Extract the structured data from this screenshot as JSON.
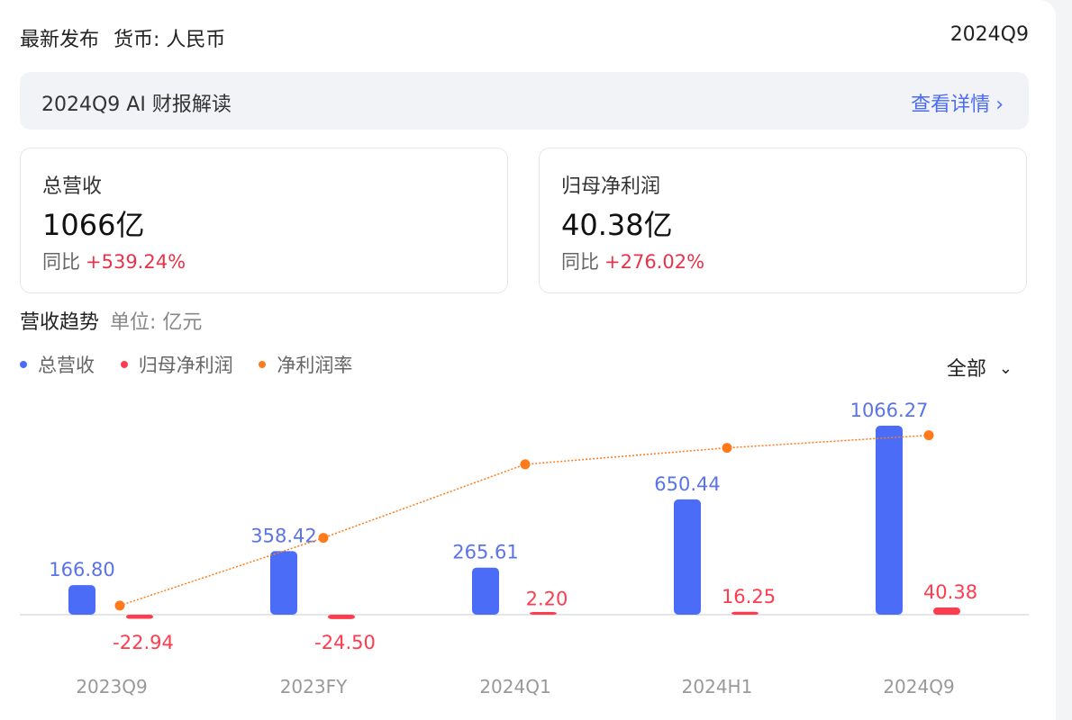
{
  "header": {
    "latest": "最新发布",
    "currency": "货币: 人民币",
    "period": "2024Q9"
  },
  "ai_bar": {
    "title": "2024Q9 AI 财报解读",
    "link": "查看详情",
    "chevron": "›"
  },
  "kpis": [
    {
      "label": "总营收",
      "value": "1066亿",
      "yoy_label": "同比",
      "yoy_value": "+539.24%"
    },
    {
      "label": "归母净利润",
      "value": "40.38亿",
      "yoy_label": "同比",
      "yoy_value": "+276.02%"
    }
  ],
  "trend": {
    "title": "营收趋势",
    "unit": "单位: 亿元"
  },
  "legend": [
    {
      "name": "总营收",
      "color": "#4a6cf7"
    },
    {
      "name": "归母净利润",
      "color": "#ff3b4e"
    },
    {
      "name": "净利润率",
      "color": "#ff7a1a"
    }
  ],
  "filter": {
    "label": "全部",
    "chevron": "⌄"
  },
  "colors": {
    "revenue": "#4a6cf7",
    "profit": "#ff3b4e",
    "margin": "#ff7a1a"
  },
  "chart_data": {
    "type": "bar",
    "categories": [
      "2023Q9",
      "2023FY",
      "2024Q1",
      "2024H1",
      "2024Q9"
    ],
    "series": [
      {
        "name": "总营收",
        "kind": "bar",
        "values": [
          166.8,
          358.42,
          265.61,
          650.44,
          1066.27
        ],
        "labels": [
          "166.80",
          "358.42",
          "265.61",
          "650.44",
          "1066.27"
        ]
      },
      {
        "name": "归母净利润",
        "kind": "bar",
        "values": [
          -22.94,
          -24.5,
          2.2,
          16.25,
          40.38
        ],
        "labels": [
          "-22.94",
          "-24.50",
          "2.20",
          "16.25",
          "40.38"
        ]
      },
      {
        "name": "净利润率",
        "kind": "line",
        "values": [
          -13.8,
          -6.8,
          0.8,
          2.5,
          3.8
        ]
      }
    ],
    "ylim": [
      -60,
      1100
    ],
    "margin_ylim": [
      -14,
      6
    ],
    "grid": false
  }
}
